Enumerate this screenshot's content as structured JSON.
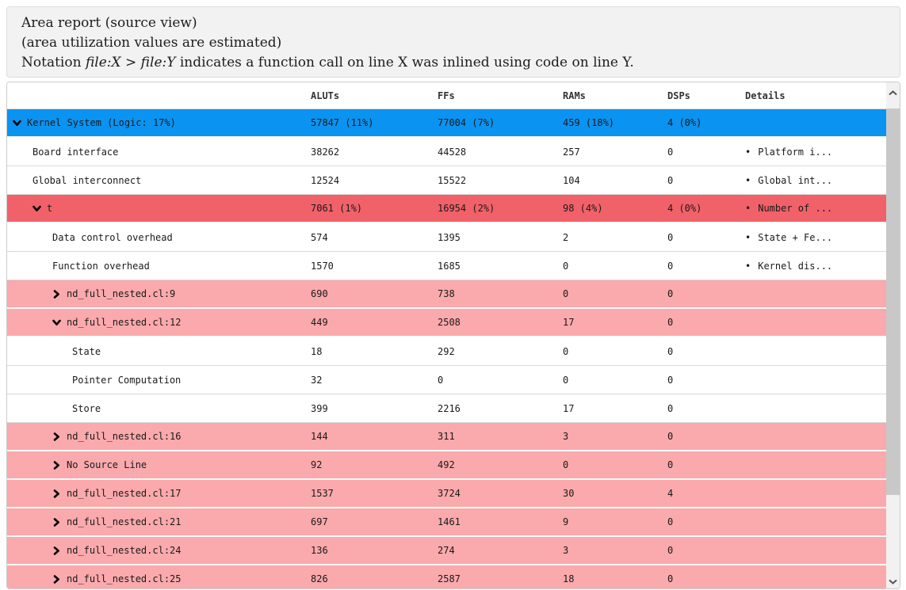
{
  "header": {
    "line1": "Area report (source view)",
    "line2": "(area utilization values are estimated)",
    "notation": {
      "prefix": "Notation ",
      "file_x": "file:X",
      "separator": " > ",
      "file_y": "file:Y",
      "suffix": " indicates a function call on line X was inlined using code on line Y."
    }
  },
  "colors": {
    "selected_row_blue": "#0a93f0",
    "high_area_row_red": "#f1616a",
    "medium_area_row_pink": "#faa9ac",
    "scrollbar_track": "#f1f1f1",
    "scrollbar_thumb": "#c8c8c8"
  },
  "table": {
    "columns": [
      {
        "id": "name",
        "label": ""
      },
      {
        "id": "aluts",
        "label": "ALUTs"
      },
      {
        "id": "ffs",
        "label": "FFs"
      },
      {
        "id": "rams",
        "label": "RAMs"
      },
      {
        "id": "dsps",
        "label": "DSPs"
      },
      {
        "id": "details",
        "label": "Details"
      }
    ],
    "rows": [
      {
        "name": "Kernel System (Logic: 17%)",
        "level": 0,
        "expand": "down",
        "color": "blue",
        "aluts": "57847 (11%)",
        "ffs": "77004 (7%)",
        "rams": "459 (18%)",
        "dsps": "4 (0%)",
        "details": ""
      },
      {
        "name": "Board interface",
        "level": 1,
        "expand": null,
        "color": "white",
        "aluts": "38262",
        "ffs": "44528",
        "rams": "257",
        "dsps": "0",
        "details": "Platform i..."
      },
      {
        "name": "Global interconnect",
        "level": 1,
        "expand": null,
        "color": "white",
        "aluts": "12524",
        "ffs": "15522",
        "rams": "104",
        "dsps": "0",
        "details": "Global int..."
      },
      {
        "name": "t",
        "level": 1,
        "expand": "down",
        "color": "red",
        "aluts": "7061 (1%)",
        "ffs": "16954 (2%)",
        "rams": "98 (4%)",
        "dsps": "4 (0%)",
        "details": "Number of ..."
      },
      {
        "name": "Data control overhead",
        "level": 2,
        "expand": null,
        "color": "white",
        "aluts": "574",
        "ffs": "1395",
        "rams": "2",
        "dsps": "0",
        "details": "State + Fe..."
      },
      {
        "name": "Function overhead",
        "level": 2,
        "expand": null,
        "color": "white",
        "aluts": "1570",
        "ffs": "1685",
        "rams": "0",
        "dsps": "0",
        "details": "Kernel dis..."
      },
      {
        "name": "nd_full_nested.cl:9",
        "level": 2,
        "expand": "right",
        "color": "pink",
        "aluts": "690",
        "ffs": "738",
        "rams": "0",
        "dsps": "0",
        "details": ""
      },
      {
        "name": "nd_full_nested.cl:12",
        "level": 2,
        "expand": "down",
        "color": "pink",
        "aluts": "449",
        "ffs": "2508",
        "rams": "17",
        "dsps": "0",
        "details": ""
      },
      {
        "name": "State",
        "level": 3,
        "expand": null,
        "color": "white",
        "aluts": "18",
        "ffs": "292",
        "rams": "0",
        "dsps": "0",
        "details": ""
      },
      {
        "name": "Pointer Computation",
        "level": 3,
        "expand": null,
        "color": "white",
        "aluts": "32",
        "ffs": "0",
        "rams": "0",
        "dsps": "0",
        "details": ""
      },
      {
        "name": "Store",
        "level": 3,
        "expand": null,
        "color": "white",
        "aluts": "399",
        "ffs": "2216",
        "rams": "17",
        "dsps": "0",
        "details": ""
      },
      {
        "name": "nd_full_nested.cl:16",
        "level": 2,
        "expand": "right",
        "color": "pink",
        "aluts": "144",
        "ffs": "311",
        "rams": "3",
        "dsps": "0",
        "details": ""
      },
      {
        "name": "No Source Line",
        "level": 2,
        "expand": "right",
        "color": "pink",
        "aluts": "92",
        "ffs": "492",
        "rams": "0",
        "dsps": "0",
        "details": ""
      },
      {
        "name": "nd_full_nested.cl:17",
        "level": 2,
        "expand": "right",
        "color": "pink",
        "aluts": "1537",
        "ffs": "3724",
        "rams": "30",
        "dsps": "4",
        "details": ""
      },
      {
        "name": "nd_full_nested.cl:21",
        "level": 2,
        "expand": "right",
        "color": "pink",
        "aluts": "697",
        "ffs": "1461",
        "rams": "9",
        "dsps": "0",
        "details": ""
      },
      {
        "name": "nd_full_nested.cl:24",
        "level": 2,
        "expand": "right",
        "color": "pink",
        "aluts": "136",
        "ffs": "274",
        "rams": "3",
        "dsps": "0",
        "details": ""
      },
      {
        "name": "nd_full_nested.cl:25",
        "level": 2,
        "expand": "right",
        "color": "pink",
        "aluts": "826",
        "ffs": "2587",
        "rams": "18",
        "dsps": "0",
        "details": ""
      }
    ]
  }
}
